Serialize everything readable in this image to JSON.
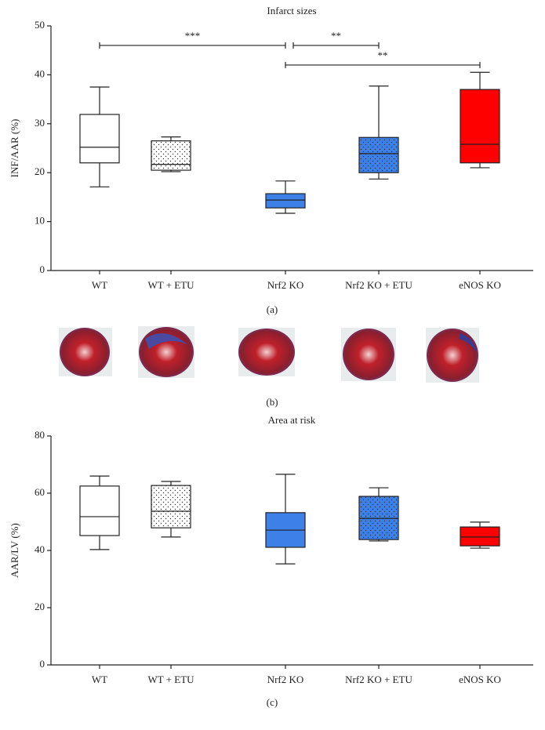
{
  "chart_data": [
    {
      "type": "box",
      "title": "Infarct sizes",
      "y_label": "INF/AAR (%)",
      "categories": [
        "WT",
        "WT + ETU",
        "Nrf2 KO",
        "Nrf2 KO + ETU",
        "eNOS KO"
      ],
      "boxes": [
        {
          "min": 17.1,
          "q1": 22.0,
          "median": 25.2,
          "q3": 31.9,
          "max": 37.5
        },
        {
          "min": 20.2,
          "q1": 20.5,
          "median": 21.7,
          "q3": 26.5,
          "max": 27.3
        },
        {
          "min": 11.7,
          "q1": 12.8,
          "median": 14.4,
          "q3": 15.7,
          "max": 18.3
        },
        {
          "min": 18.7,
          "q1": 20.0,
          "median": 23.9,
          "q3": 27.2,
          "max": 37.7
        },
        {
          "min": 21.0,
          "q1": 22.0,
          "median": 25.8,
          "q3": 37.0,
          "max": 40.5
        }
      ],
      "colors": [
        "#ffffff",
        "#ffffff",
        "#3d80e8",
        "#3d80e8",
        "#ff0000"
      ],
      "fill_pattern": [
        "none",
        "dots",
        "none",
        "dots",
        "none"
      ],
      "ylim": [
        0,
        50
      ],
      "yticks": [
        0,
        10,
        20,
        30,
        40,
        50
      ],
      "annotations": [
        {
          "text": "***",
          "from": "WT",
          "to": "Nrf2 KO",
          "y": 46
        },
        {
          "text": "**",
          "from": "Nrf2 KO",
          "to": "Nrf2 KO + ETU",
          "y": 46
        },
        {
          "text": "**",
          "from": "Nrf2 KO",
          "to": "eNOS KO",
          "y": 42
        }
      ]
    },
    {
      "type": "box",
      "title": "Area at risk",
      "y_label": "AAR/LV (%)",
      "categories": [
        "WT",
        "WT + ETU",
        "Nrf2 KO",
        "Nrf2 KO + ETU",
        "eNOS KO"
      ],
      "boxes": [
        {
          "min": 40.3,
          "q1": 45.2,
          "median": 51.8,
          "q3": 62.5,
          "max": 66.0
        },
        {
          "min": 44.7,
          "q1": 47.9,
          "median": 53.7,
          "q3": 62.7,
          "max": 64.1
        },
        {
          "min": 35.3,
          "q1": 41.1,
          "median": 47.1,
          "q3": 53.2,
          "max": 66.6
        },
        {
          "min": 43.3,
          "q1": 43.8,
          "median": 51.2,
          "q3": 58.9,
          "max": 61.9
        },
        {
          "min": 40.8,
          "q1": 41.6,
          "median": 44.7,
          "q3": 48.2,
          "max": 49.9
        }
      ],
      "colors": [
        "#ffffff",
        "#ffffff",
        "#3d80e8",
        "#3d80e8",
        "#ff0000"
      ],
      "fill_pattern": [
        "none",
        "dots",
        "none",
        "dots",
        "none"
      ],
      "ylim": [
        0,
        80
      ],
      "yticks": [
        0,
        20,
        40,
        60,
        80
      ]
    }
  ],
  "panels": [
    "(a)",
    "(b)",
    "(c)"
  ]
}
